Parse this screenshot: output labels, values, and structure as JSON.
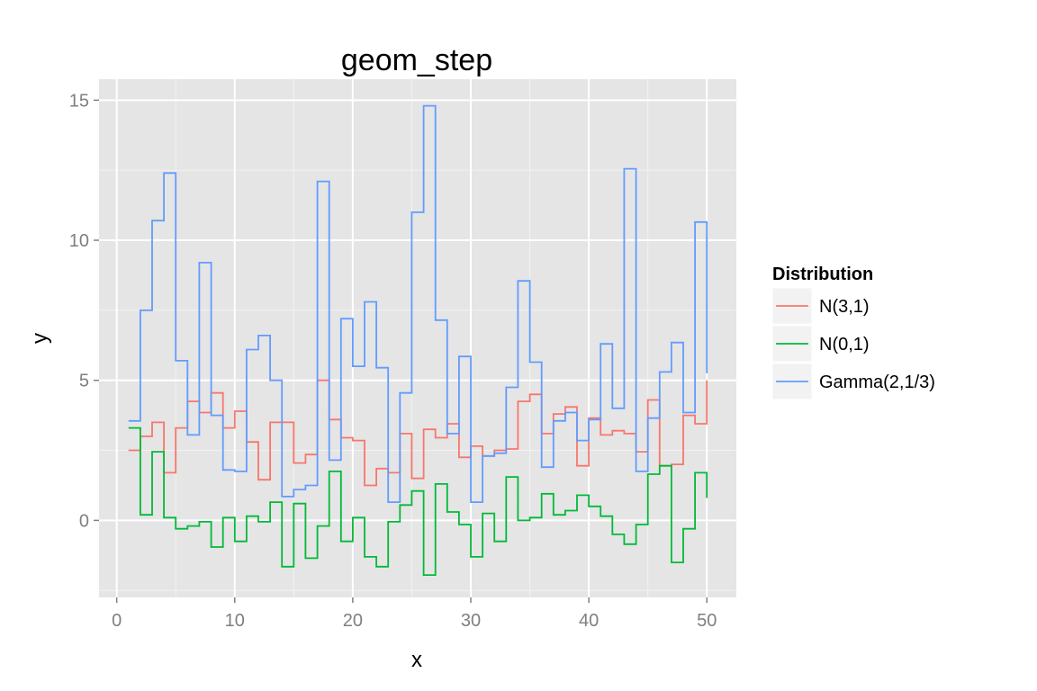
{
  "chart_data": {
    "type": "line",
    "subtype": "step",
    "title": "geom_step",
    "xlabel": "x",
    "ylabel": "y",
    "xlim": [
      -1.5,
      52.5
    ],
    "ylim": [
      -2.75,
      15.75
    ],
    "x_ticks": [
      0,
      10,
      20,
      30,
      40,
      50
    ],
    "x_tick_labels": [
      "0",
      "10",
      "20",
      "30",
      "40",
      "50"
    ],
    "y_ticks": [
      0,
      5,
      10,
      15
    ],
    "y_tick_labels": [
      "0",
      "5",
      "10",
      "15"
    ],
    "x_minor_ticks": [
      5,
      15,
      25,
      35,
      45
    ],
    "y_minor_ticks": [
      -2.5,
      2.5,
      7.5,
      12.5
    ],
    "grid": true,
    "panel_background": "#e5e5e5",
    "legend": {
      "title": "Distribution",
      "position": "right"
    },
    "x": [
      1,
      2,
      3,
      4,
      5,
      6,
      7,
      8,
      9,
      10,
      11,
      12,
      13,
      14,
      15,
      16,
      17,
      18,
      19,
      20,
      21,
      22,
      23,
      24,
      25,
      26,
      27,
      28,
      29,
      30,
      31,
      32,
      33,
      34,
      35,
      36,
      37,
      38,
      39,
      40,
      41,
      42,
      43,
      44,
      45,
      46,
      47,
      48,
      49,
      50
    ],
    "series": [
      {
        "name": "N(3,1)",
        "color": "#f8766d",
        "values": [
          2.5,
          3.0,
          3.5,
          1.7,
          3.3,
          4.25,
          3.85,
          4.55,
          3.3,
          3.9,
          2.8,
          1.45,
          3.5,
          3.5,
          2.05,
          2.35,
          5.0,
          3.6,
          2.95,
          2.85,
          1.25,
          1.85,
          1.7,
          3.1,
          1.5,
          3.25,
          2.95,
          3.45,
          2.25,
          2.65,
          2.3,
          2.5,
          2.55,
          4.25,
          4.5,
          3.1,
          3.8,
          4.05,
          1.95,
          3.65,
          3.05,
          3.2,
          3.1,
          2.45,
          4.3,
          1.95,
          2.0,
          3.75,
          3.45,
          5.0
        ]
      },
      {
        "name": "N(0,1)",
        "color": "#00ba38",
        "values": [
          3.3,
          0.2,
          2.45,
          0.1,
          -0.3,
          -0.2,
          -0.05,
          -0.95,
          0.1,
          -0.75,
          0.15,
          -0.05,
          0.65,
          -1.65,
          0.6,
          -1.35,
          -0.2,
          1.75,
          -0.75,
          0.1,
          -1.3,
          -1.65,
          -0.05,
          0.55,
          1.05,
          -1.95,
          1.3,
          0.3,
          -0.15,
          -1.3,
          0.25,
          -0.75,
          1.55,
          0.0,
          0.1,
          0.95,
          0.2,
          0.35,
          0.9,
          0.5,
          0.15,
          -0.5,
          -0.85,
          -0.15,
          1.65,
          1.95,
          -1.5,
          -0.3,
          1.7,
          0.8
        ]
      },
      {
        "name": "Gamma(2,1/3)",
        "color": "#619cff",
        "values": [
          3.55,
          7.5,
          10.7,
          12.4,
          5.7,
          3.05,
          9.2,
          3.75,
          1.8,
          1.75,
          6.1,
          6.6,
          5.0,
          0.85,
          1.1,
          1.25,
          12.1,
          2.15,
          7.2,
          5.5,
          7.8,
          5.45,
          0.65,
          4.55,
          11.0,
          14.8,
          7.15,
          3.1,
          5.85,
          0.65,
          2.3,
          2.4,
          4.75,
          8.55,
          5.65,
          1.9,
          3.55,
          3.85,
          2.85,
          3.6,
          6.3,
          4.0,
          12.55,
          1.75,
          3.65,
          5.3,
          6.35,
          3.85,
          10.65,
          5.25
        ]
      }
    ]
  }
}
